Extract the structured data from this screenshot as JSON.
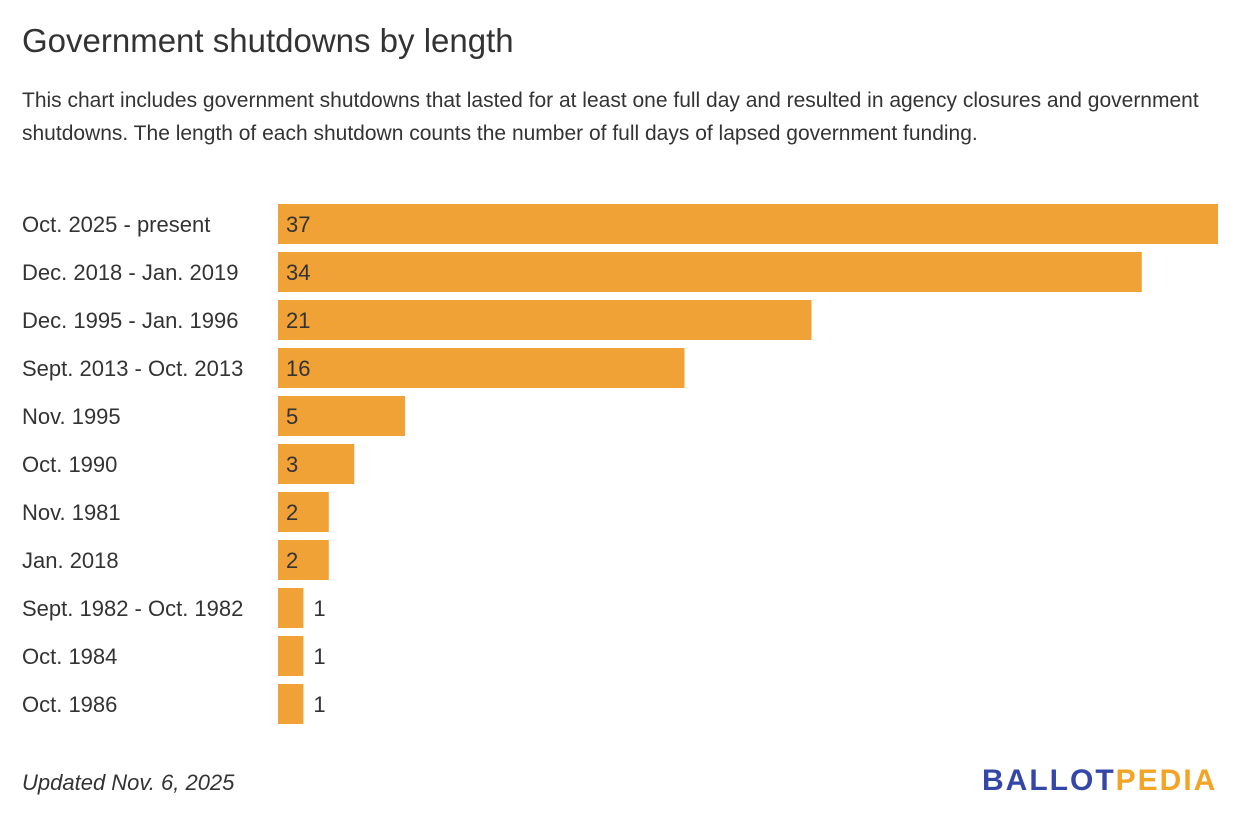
{
  "chart_data": {
    "type": "bar",
    "orientation": "horizontal",
    "title": "Government shutdowns by length",
    "subtitle": "This chart includes government shutdowns that lasted for at least one full day and resulted in agency closures and government shutdowns. The length of each shutdown counts the number of full days of lapsed government funding.",
    "categories": [
      "Oct. 2025 - present",
      "Dec. 2018 - Jan. 2019",
      "Dec. 1995 - Jan. 1996",
      "Sept. 2013 - Oct. 2013",
      "Nov. 1995",
      "Oct. 1990",
      "Nov. 1981",
      "Jan. 2018",
      "Sept. 1982 - Oct. 1982",
      "Oct. 1984",
      "Oct. 1986"
    ],
    "values": [
      37,
      34,
      21,
      16,
      5,
      3,
      2,
      2,
      1,
      1,
      1
    ],
    "xlim": [
      0,
      37
    ],
    "bar_color": "#f0a236",
    "grid": false
  },
  "footer": {
    "updated": "Updated Nov. 6, 2025"
  },
  "logo": {
    "part1": "BALLOT",
    "part2": "PEDIA",
    "color1": "#3447a8",
    "color2": "#f2a425"
  }
}
